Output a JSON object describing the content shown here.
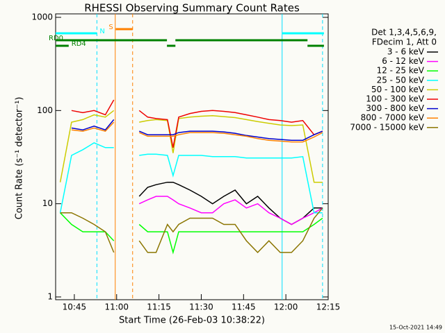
{
  "chart_data": {
    "type": "line",
    "title": "RHESSI Observing Summary Count Rates",
    "xlabel": "Start Time (26-Feb-03 10:38:22)",
    "ylabel": "Count Rate (s⁻¹ detector⁻¹)",
    "footer": "15-Oct-2021 14:49",
    "legend_header": [
      "Det 1,3,4,5,6,9,",
      "FDecim 1, Att 0"
    ],
    "log_y": true,
    "xlim": [
      "10:38:22",
      "12:15"
    ],
    "xticks": [
      "10:45",
      "11:00",
      "11:15",
      "11:30",
      "11:45",
      "12:00",
      "12:15"
    ],
    "ylim": [
      1,
      1000
    ],
    "yticks": [
      1,
      10,
      100,
      1000
    ],
    "x": [
      "10:40",
      "10:44",
      "10:48",
      "10:52",
      "10:56",
      "10:59",
      "11:03",
      "11:08",
      "11:11",
      "11:14",
      "11:18",
      "11:20",
      "11:22",
      "11:26",
      "11:30",
      "11:34",
      "11:38",
      "11:42",
      "11:46",
      "11:50",
      "11:54",
      "11:58",
      "12:02",
      "12:06",
      "12:10",
      "12:13"
    ],
    "series": [
      {
        "name": "3 - 6 keV",
        "color": "#000000",
        "values": [
          null,
          null,
          null,
          null,
          null,
          null,
          null,
          12,
          15,
          16,
          17,
          17,
          16,
          14,
          12,
          10,
          12,
          14,
          10,
          12,
          9,
          7,
          6,
          7,
          9,
          9
        ]
      },
      {
        "name": "6 - 12 keV",
        "color": "#ff00ff",
        "values": [
          null,
          null,
          null,
          null,
          null,
          null,
          null,
          10,
          11,
          12,
          12,
          11,
          10,
          9,
          8,
          8,
          10,
          11,
          9,
          10,
          8,
          7,
          6,
          7,
          8,
          9
        ]
      },
      {
        "name": "12 - 25 keV",
        "color": "#00ff00",
        "values": [
          8,
          6,
          5,
          5,
          5,
          4,
          null,
          6,
          5,
          5,
          5,
          3,
          5,
          5,
          5,
          5,
          5,
          5,
          5,
          5,
          5,
          5,
          5,
          5,
          6,
          7
        ]
      },
      {
        "name": "25 - 50 keV",
        "color": "#00ffff",
        "values": [
          8,
          33,
          38,
          45,
          40,
          40,
          null,
          33,
          34,
          34,
          33,
          20,
          33,
          33,
          33,
          32,
          32,
          32,
          31,
          31,
          31,
          31,
          31,
          32,
          8,
          8
        ]
      },
      {
        "name": "50 - 100 keV",
        "color": "#cccc00",
        "values": [
          17,
          75,
          80,
          90,
          85,
          100,
          null,
          75,
          78,
          80,
          78,
          35,
          82,
          85,
          87,
          88,
          86,
          84,
          80,
          76,
          73,
          70,
          69,
          70,
          17,
          17
        ]
      },
      {
        "name": "100 - 300 keV",
        "color": "#ee0000",
        "values": [
          null,
          100,
          95,
          100,
          90,
          130,
          null,
          100,
          85,
          82,
          80,
          40,
          85,
          93,
          98,
          100,
          98,
          95,
          90,
          85,
          80,
          78,
          75,
          78,
          55,
          60
        ]
      },
      {
        "name": "300 - 800 keV",
        "color": "#0000cc",
        "values": [
          null,
          65,
          62,
          68,
          62,
          80,
          null,
          60,
          55,
          55,
          55,
          55,
          58,
          60,
          60,
          60,
          59,
          57,
          54,
          52,
          50,
          49,
          48,
          48,
          55,
          60
        ]
      },
      {
        "name": "800 - 7000 keV",
        "color": "#ff8000",
        "values": [
          null,
          62,
          60,
          65,
          60,
          75,
          null,
          58,
          53,
          53,
          53,
          53,
          55,
          58,
          58,
          58,
          57,
          55,
          53,
          50,
          48,
          47,
          46,
          46,
          52,
          58
        ]
      },
      {
        "name": "7000 - 15000 keV",
        "color": "#8b7500",
        "values": [
          8,
          8,
          7,
          6,
          5,
          3,
          null,
          4,
          3,
          3,
          6,
          5,
          6,
          7,
          7,
          7,
          6,
          6,
          4,
          3,
          4,
          3,
          3,
          4,
          7,
          9
        ]
      }
    ],
    "markers": [
      {
        "time": "10:53",
        "color": "#00e0ff",
        "dashed": true
      },
      {
        "time": "10:59:30",
        "color": "#ff8000",
        "dashed": false
      },
      {
        "time": "11:05:40",
        "color": "#ff8000",
        "dashed": true
      },
      {
        "time": "11:58:40",
        "color": "#00e0ff",
        "dashed": false
      },
      {
        "time": "12:13",
        "color": "#00e0ff",
        "dashed": true
      }
    ],
    "flags": [
      {
        "label": "S",
        "color": "#ff8000",
        "segments": [
          [
            "10:59:40",
            "11:05:40"
          ]
        ]
      },
      {
        "label": "N",
        "color": "#00ffff",
        "segments": [
          [
            "10:38:22",
            "10:53"
          ],
          [
            "11:58:40",
            "12:13:30"
          ]
        ]
      },
      {
        "label": "RD0",
        "color": "#008000",
        "segments": [
          [
            "10:38:22",
            "11:17:50"
          ],
          [
            "11:20:50",
            "12:07:40"
          ]
        ]
      },
      {
        "label": "RD4",
        "color": "#008000",
        "segments": [
          [
            "10:38:22",
            "10:43"
          ],
          [
            "11:17:50",
            "11:20:50"
          ],
          [
            "12:07:40",
            "12:13:30"
          ]
        ]
      }
    ]
  }
}
